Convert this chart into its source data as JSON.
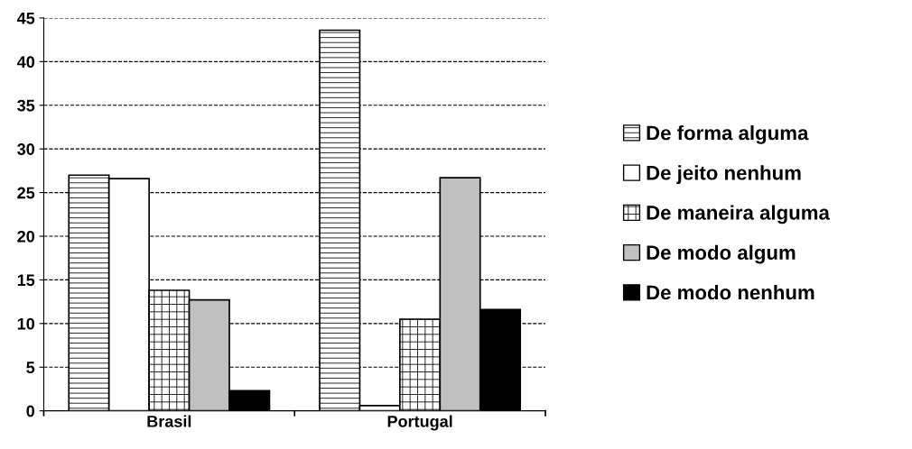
{
  "chart_data": {
    "type": "bar",
    "categories": [
      "Brasil",
      "Portugal"
    ],
    "series": [
      {
        "name": "De forma alguma",
        "color": "#ffffff",
        "values": [
          27.0,
          43.6
        ]
      },
      {
        "name": "De jeito nenhum",
        "color": "#ffffff",
        "values": [
          26.6,
          0.6
        ]
      },
      {
        "name": "De maneira alguma",
        "color": "#ffffff",
        "values": [
          13.8,
          10.5
        ]
      },
      {
        "name": "De modo algum",
        "color": "#c0c0c0",
        "values": [
          12.7,
          26.7
        ]
      },
      {
        "name": "De modo nenhum",
        "color": "#000000",
        "values": [
          2.3,
          11.6
        ]
      }
    ],
    "ylim": [
      0,
      45
    ],
    "yticks": [
      0,
      5,
      10,
      15,
      20,
      25,
      30,
      35,
      40,
      45
    ],
    "grid": "y",
    "line_style": "dashed",
    "legend": "right"
  }
}
